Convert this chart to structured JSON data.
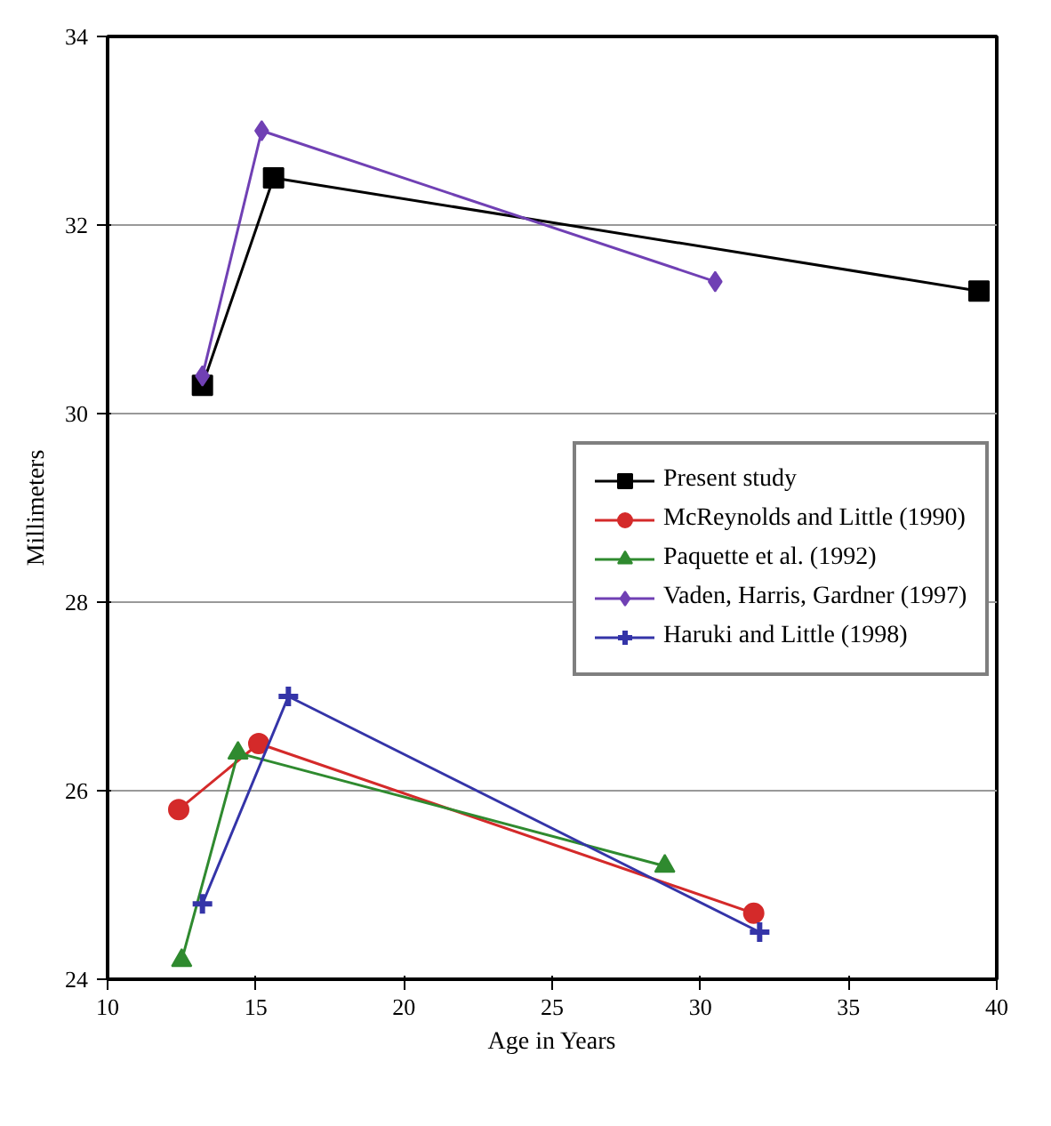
{
  "chart_data": {
    "type": "line",
    "xlabel": "Age in Years",
    "ylabel": "Millimeters",
    "xlim": [
      10,
      40
    ],
    "xticks": [
      10,
      15,
      20,
      25,
      30,
      35,
      40
    ],
    "ylim": [
      24,
      34
    ],
    "yticks": [
      24,
      26,
      28,
      30,
      32,
      34
    ],
    "grid": "y",
    "legend": "right",
    "line_style": "solid",
    "series": [
      {
        "name": "Present study",
        "color": "#000000",
        "marker": "square",
        "x": [
          13.2,
          15.6,
          39.4
        ],
        "values": [
          30.3,
          32.5,
          31.3
        ]
      },
      {
        "name": "McReynolds and Little (1990)",
        "color": "#d42a2a",
        "marker": "circle",
        "x": [
          12.4,
          15.1,
          31.8
        ],
        "values": [
          25.8,
          26.5,
          24.7
        ]
      },
      {
        "name": "Paquette et al. (1992)",
        "color": "#2f8a2f",
        "marker": "triangle",
        "x": [
          12.5,
          14.4,
          28.8
        ],
        "values": [
          24.2,
          26.4,
          25.2
        ]
      },
      {
        "name": "Vaden, Harris, Gardner (1997)",
        "color": "#7040b4",
        "marker": "diamond",
        "x": [
          13.2,
          15.2,
          30.5
        ],
        "values": [
          30.4,
          33.0,
          31.4
        ]
      },
      {
        "name": "Haruki and Little (1998)",
        "color": "#3434a8",
        "marker": "cross",
        "x": [
          13.2,
          16.1,
          32.0
        ],
        "values": [
          24.8,
          27.0,
          24.5
        ]
      }
    ]
  }
}
